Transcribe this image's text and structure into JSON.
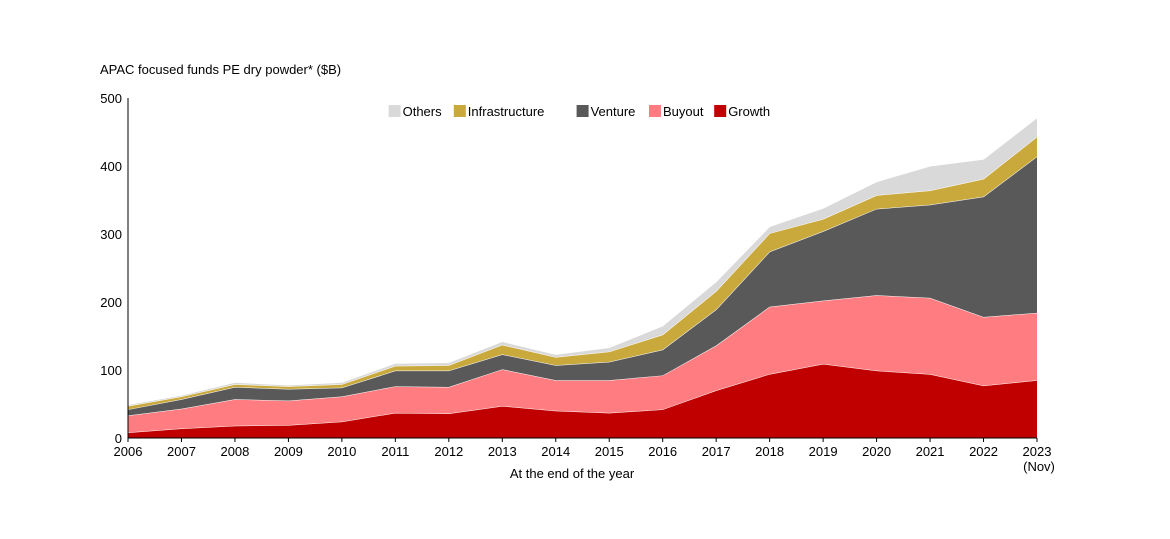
{
  "chart_data": {
    "type": "area",
    "stacked": true,
    "title": "APAC focused funds PE dry powder* ($B)",
    "xlabel": "At the end of the year",
    "ylabel": "",
    "ylim": [
      0,
      500
    ],
    "yticks": [
      0,
      100,
      200,
      300,
      400,
      500
    ],
    "grid": false,
    "legend_placement": "top-center",
    "categories": [
      "2006",
      "2007",
      "2008",
      "2009",
      "2010",
      "2011",
      "2012",
      "2013",
      "2014",
      "2015",
      "2016",
      "2017",
      "2018",
      "2019",
      "2020",
      "2021",
      "2022",
      "2023 (Nov)"
    ],
    "series": [
      {
        "name": "Growth",
        "color": "#c00000",
        "values": [
          8,
          14,
          18,
          19,
          24,
          37,
          36,
          47,
          40,
          37,
          42,
          70,
          94,
          109,
          99,
          94,
          77,
          85
        ]
      },
      {
        "name": "Buyout",
        "color": "#ff7c80",
        "values": [
          25,
          29,
          39,
          36,
          37,
          39,
          39,
          54,
          45,
          48,
          50,
          66,
          99,
          93,
          111,
          112,
          101,
          99
        ]
      },
      {
        "name": "Venture",
        "color": "#595959",
        "values": [
          9,
          14,
          18,
          17,
          13,
          23,
          24,
          22,
          22,
          27,
          38,
          53,
          81,
          102,
          127,
          137,
          177,
          230
        ]
      },
      {
        "name": "Infrastructure",
        "color": "#c9a83c",
        "values": [
          5,
          4,
          4,
          4,
          5,
          7,
          8,
          14,
          12,
          15,
          22,
          27,
          27,
          18,
          20,
          21,
          26,
          29
        ]
      },
      {
        "name": "Others",
        "color": "#d9d9d9",
        "values": [
          2,
          2,
          3,
          2,
          3,
          4,
          4,
          5,
          4,
          6,
          13,
          14,
          10,
          16,
          20,
          36,
          29,
          28
        ]
      }
    ],
    "legend_order": [
      "Others",
      "Infrastructure",
      "Venture",
      "Buyout",
      "Growth"
    ]
  }
}
